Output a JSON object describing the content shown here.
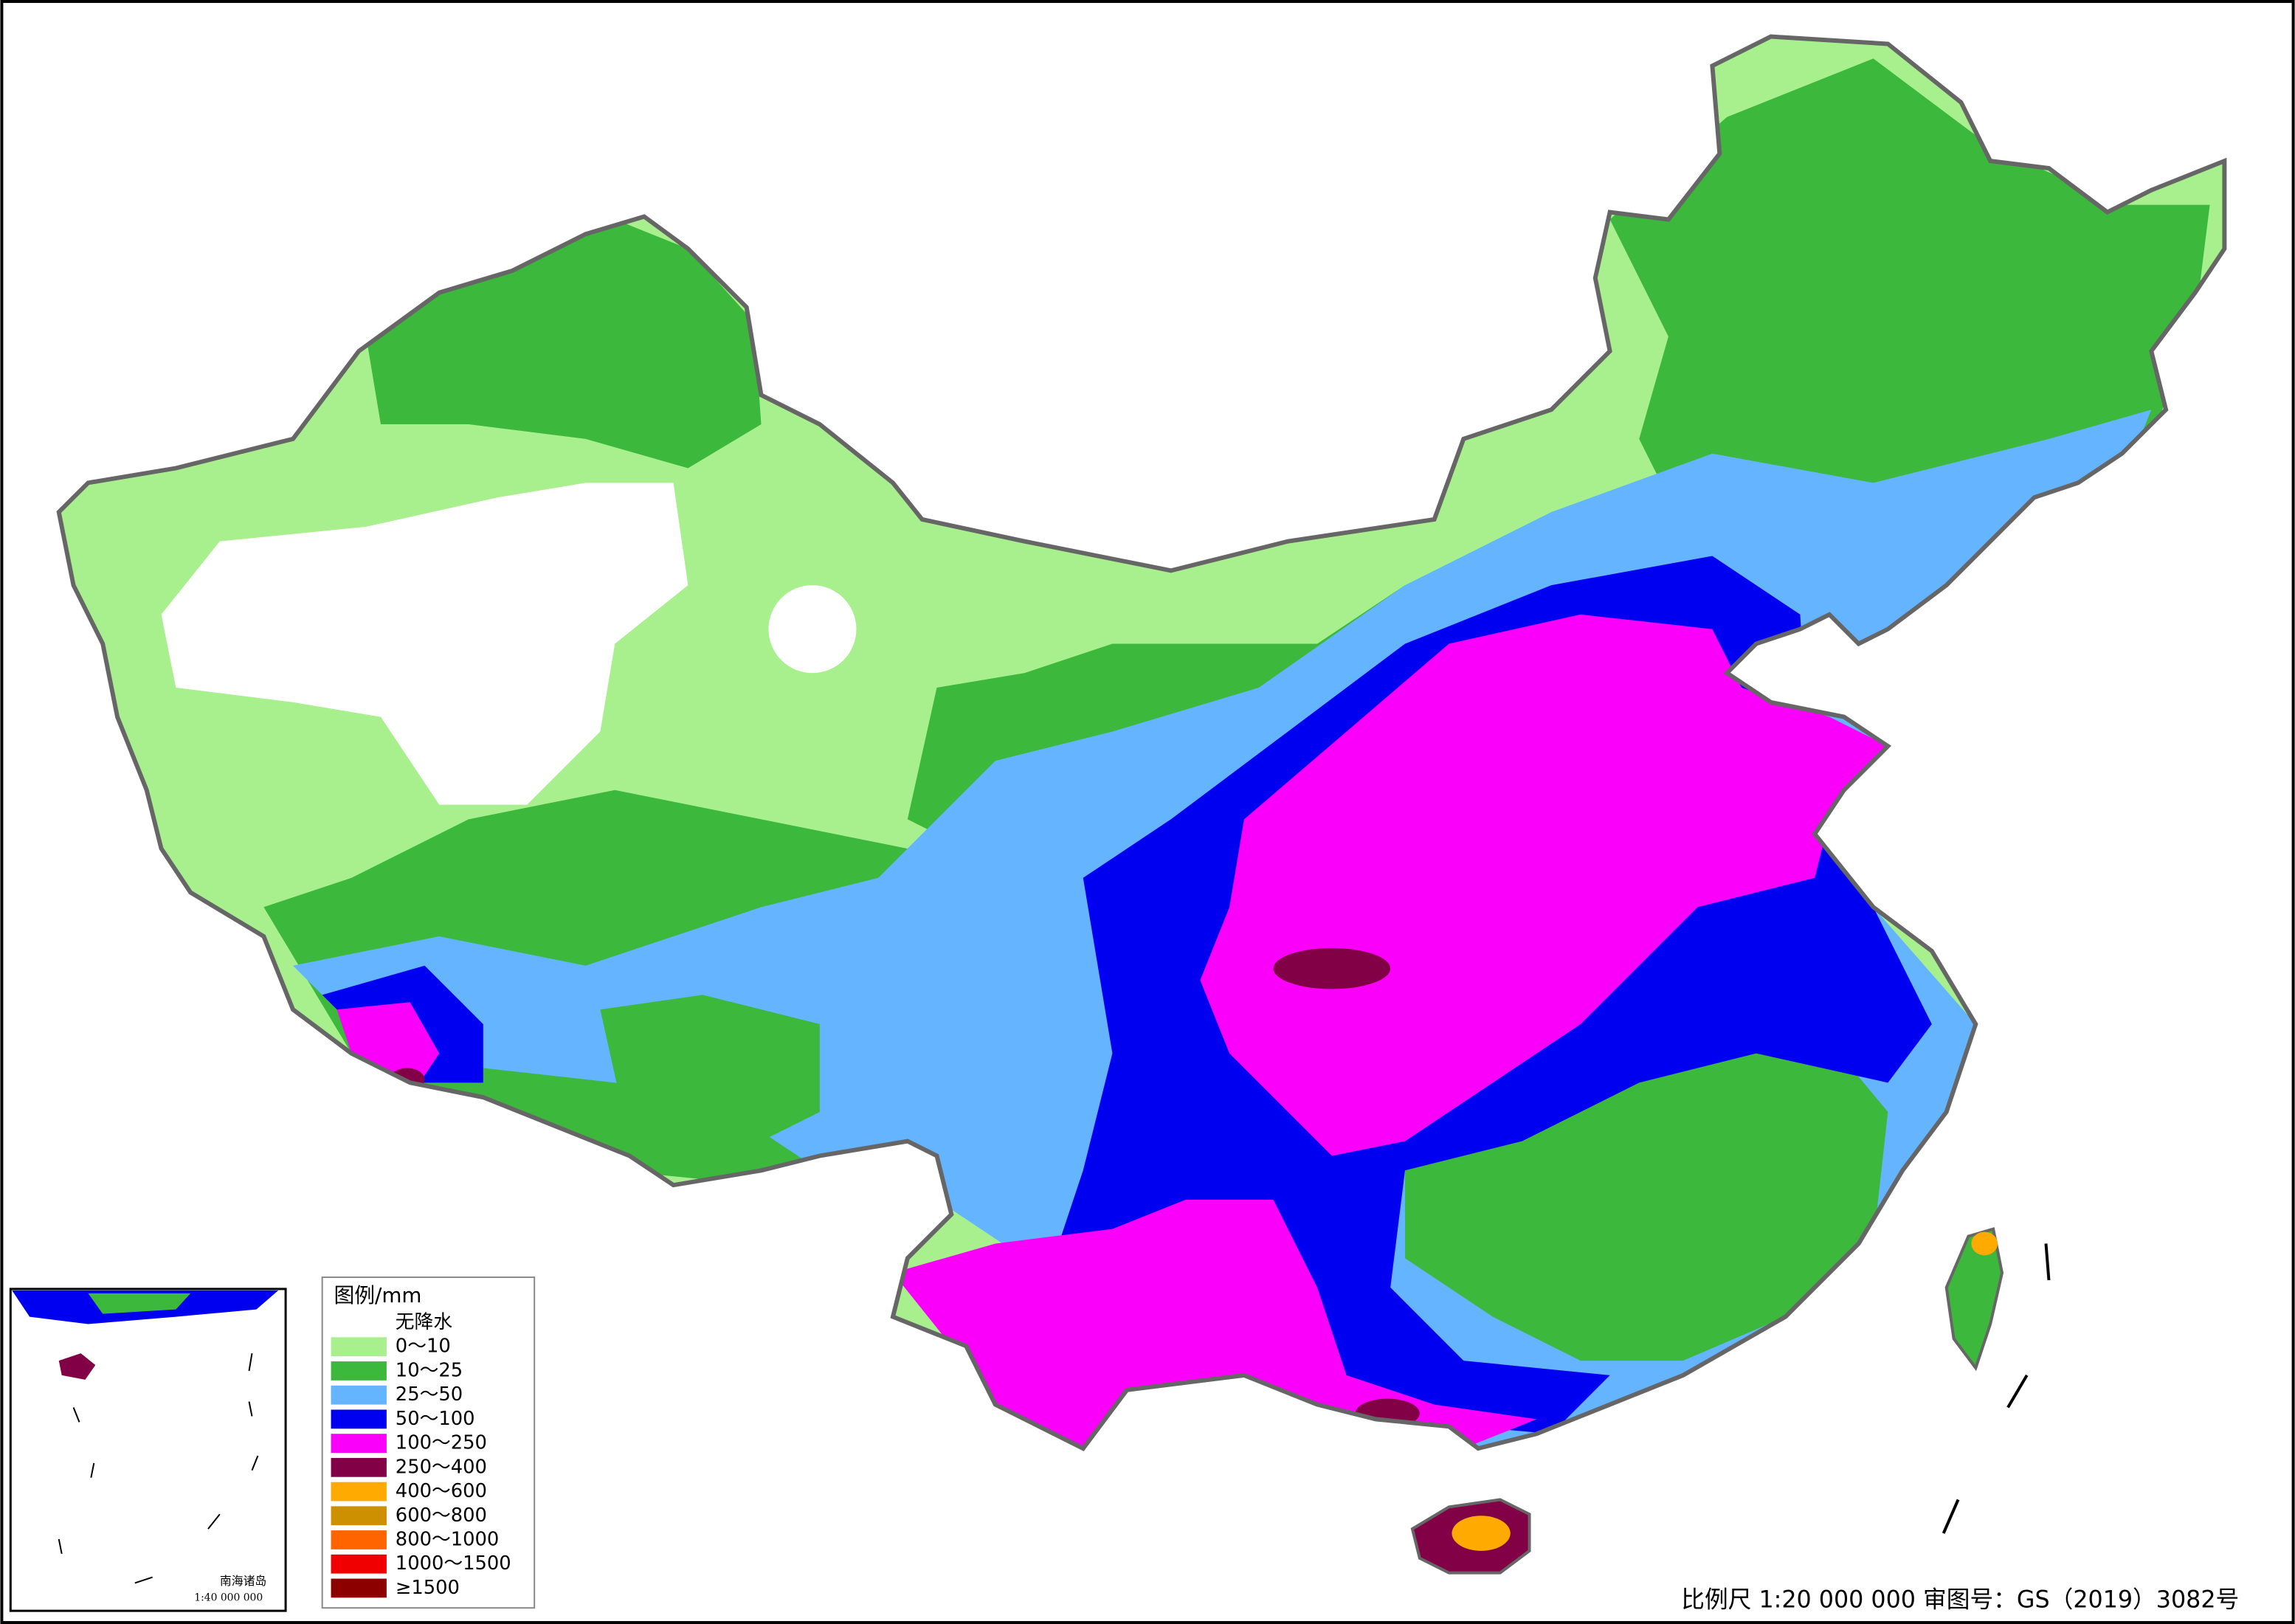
{
  "legend": {
    "title": "图例/mm",
    "items": [
      {
        "label": "无降水",
        "color": "#ffffff"
      },
      {
        "label": "0～10",
        "color": "#a8f08e"
      },
      {
        "label": "10～25",
        "color": "#3cb83c"
      },
      {
        "label": "25～50",
        "color": "#64b4ff"
      },
      {
        "label": "50～100",
        "color": "#0000f0"
      },
      {
        "label": "100～250",
        "color": "#fa00fa"
      },
      {
        "label": "250～400",
        "color": "#820046"
      },
      {
        "label": "400～600",
        "color": "#ffaa00"
      },
      {
        "label": "600～800",
        "color": "#cd9000"
      },
      {
        "label": "800～1000",
        "color": "#ff6400"
      },
      {
        "label": "1000～1500",
        "color": "#f00000"
      },
      {
        "label": "≥1500",
        "color": "#8c0000"
      }
    ]
  },
  "scale_note": "比例尺 1:20 000 000 审图号：GS（2019）3082号",
  "inset": {
    "title": "南海诸岛",
    "scale": "1:40 000 000"
  }
}
